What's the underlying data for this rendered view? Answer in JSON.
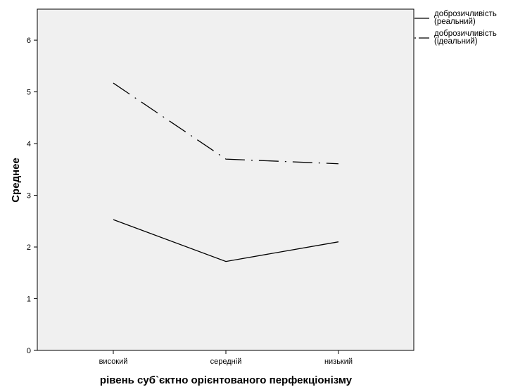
{
  "chart_data": {
    "type": "line",
    "title": "",
    "xlabel": "рівень суб`єктно орієнтованого перфекціонізму",
    "ylabel": "Среднее",
    "categories": [
      "високий",
      "середній",
      "низький"
    ],
    "ylim": [
      0,
      6.6
    ],
    "yticks": [
      0,
      1,
      2,
      3,
      4,
      5,
      6
    ],
    "ytick_labels": [
      "0",
      "1",
      "2",
      "3",
      "4",
      "5",
      "6"
    ],
    "grid": false,
    "plot_background": "#f0f0f0",
    "legend_position": "right",
    "series": [
      {
        "name": "доброзичливість (реальний)",
        "legend_lines": [
          "доброзичливість",
          "(реальний)"
        ],
        "values": [
          2.53,
          1.72,
          2.1
        ],
        "line_style": "solid",
        "color": "#000000"
      },
      {
        "name": "доброзичливість (ідеальний)",
        "legend_lines": [
          "доброзичливість",
          "(ідеальний)"
        ],
        "values": [
          5.17,
          3.7,
          3.61
        ],
        "line_style": "dash-dot",
        "color": "#000000"
      }
    ]
  }
}
